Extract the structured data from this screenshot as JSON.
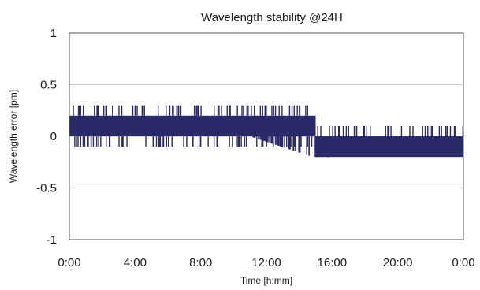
{
  "chart_data": {
    "type": "line",
    "title": "Wavelength stability @24H",
    "xlabel": "Time [h:mm]",
    "ylabel": "Wavelength error [pm]",
    "xlim": [
      0,
      24
    ],
    "ylim": [
      -1,
      1
    ],
    "x_tick_values": [
      0,
      4,
      8,
      12,
      16,
      20,
      24
    ],
    "x_tick_labels": [
      "0:00",
      "4:00",
      "8:00",
      "12:00",
      "16:00",
      "20:00",
      "0:00"
    ],
    "y_tick_values": [
      1,
      0.5,
      0,
      -0.5,
      -1
    ],
    "y_tick_labels": [
      "1",
      "0.5",
      "0",
      "-0.5",
      "-1"
    ],
    "grid": "horizontal",
    "colors": {
      "series": "#2a2a6a",
      "grid": "#c8c8c8",
      "axis": "#555555"
    },
    "series": [
      {
        "segments": [
          {
            "x_start": 0.0,
            "x_end": 15.0,
            "band_low": 0.0,
            "band_high": 0.2,
            "spike_low": -0.1,
            "spike_high": 0.3
          },
          {
            "x_start": 15.0,
            "x_end": 24.0,
            "band_low": -0.2,
            "band_high": 0.0,
            "spike_low": -0.2,
            "spike_high": 0.1
          }
        ]
      }
    ]
  }
}
